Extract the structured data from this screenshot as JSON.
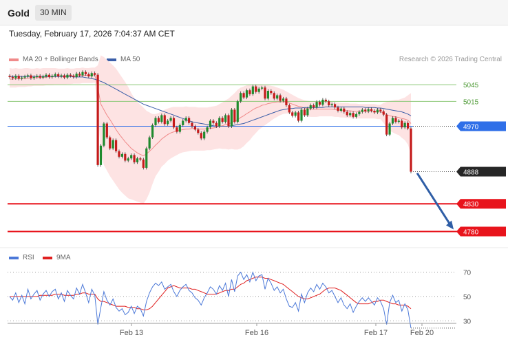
{
  "header": {
    "title": "Gold",
    "timeframe": "30 MIN"
  },
  "datetime": "Tuesday, February 17, 2026 7:04:37 AM CET",
  "legend": [
    {
      "label": "MA 20 + Bollinger Bands",
      "color": "#f08a8a"
    },
    {
      "label": "MA 50",
      "color": "#3b5ea8"
    }
  ],
  "rsi_legend": [
    {
      "label": "RSI",
      "color": "#4b78d8"
    },
    {
      "label": "9MA",
      "color": "#e02020"
    }
  ],
  "copyright": "Research © 2026 Trading Central",
  "colors": {
    "resistance": "#8ec97a",
    "pivot": "#2f6fe8",
    "support": "#e8141c",
    "current": "#262626",
    "bollinger": "#fde3e3",
    "arrow": "#2f5ea6",
    "candle_up": "#1f8a2e",
    "candle_down": "#c41a1a"
  },
  "chart_data": [
    {
      "type": "candlestick",
      "ylim": [
        4757,
        5080
      ],
      "xtick_labels": [
        "Feb 13",
        "Feb 16",
        "Feb 17",
        "Feb 20"
      ],
      "levels": [
        {
          "label": "5045",
          "value": 5045,
          "kind": "resistance"
        },
        {
          "label": "5015",
          "value": 5015,
          "kind": "resistance"
        },
        {
          "label": "4970",
          "value": 4970,
          "kind": "pivot"
        },
        {
          "label": "4888",
          "value": 4888,
          "kind": "current"
        },
        {
          "label": "4830",
          "value": 4830,
          "kind": "support"
        },
        {
          "label": "4780",
          "value": 4780,
          "kind": "support"
        }
      ],
      "close": [
        5059,
        5057,
        5061,
        5056,
        5058,
        5060,
        5062,
        5057,
        5059,
        5061,
        5058,
        5060,
        5063,
        5059,
        5061,
        5064,
        5060,
        5062,
        5058,
        5063,
        5061,
        5059,
        5065,
        5062,
        5068,
        5064,
        5060,
        5066,
        5063,
        4900,
        4935,
        4975,
        4950,
        4930,
        4945,
        4925,
        4915,
        4920,
        4908,
        4912,
        4918,
        4905,
        4912,
        4910,
        4895,
        4930,
        4950,
        4972,
        4985,
        4978,
        4990,
        4974,
        4980,
        4985,
        4968,
        4960,
        4972,
        4980,
        4985,
        4976,
        4970,
        4964,
        4958,
        4948,
        4960,
        4968,
        4980,
        4976,
        4970,
        4985,
        4978,
        4990,
        4970,
        5000,
        4978,
        5015,
        5030,
        5022,
        5035,
        5028,
        5042,
        5032,
        5038,
        5040,
        5020,
        5034,
        5030,
        5020,
        5026,
        5016,
        5020,
        5008,
        4995,
        4989,
        4995,
        4980,
        5000,
        4990,
        5002,
        5008,
        5004,
        5014,
        5009,
        5018,
        5015,
        5008,
        5010,
        5004,
        4998,
        5002,
        4996,
        4990,
        4994,
        4987,
        4992,
        4996,
        5000,
        4997,
        5001,
        4998,
        4995,
        5000,
        4997,
        4991,
        4955,
        4975,
        4985,
        4978,
        4980,
        4968,
        4976,
        4966,
        4888
      ],
      "ma20": [
        5055,
        5055,
        5056,
        5056,
        5056,
        5056,
        5057,
        5057,
        5058,
        5058,
        5058,
        5058,
        5059,
        5059,
        5059,
        5060,
        5060,
        5060,
        5060,
        5061,
        5061,
        5061,
        5061,
        5061,
        5062,
        5062,
        5062,
        5062,
        5063,
        5040,
        5010,
        5000,
        4990,
        4982,
        4973,
        4964,
        4956,
        4949,
        4942,
        4936,
        4930,
        4926,
        4922,
        4919,
        4917,
        4920,
        4925,
        4930,
        4936,
        4941,
        4947,
        4951,
        4955,
        4958,
        4960,
        4962,
        4963,
        4964,
        4965,
        4965,
        4966,
        4966,
        4965,
        4965,
        4965,
        4966,
        4966,
        4967,
        4968,
        4970,
        4971,
        4973,
        4974,
        4977,
        4979,
        4982,
        4986,
        4989,
        4993,
        4996,
        5000,
        5003,
        5005,
        5008,
        5009,
        5011,
        5012,
        5013,
        5014,
        5014,
        5014,
        5014,
        5012,
        5010,
        5008,
        5006,
        5005,
        5003,
        5002,
        5001,
        5001,
        5001,
        5001,
        5001,
        5001,
        5001,
        5001,
        5000,
        5000,
        4999,
        4999,
        4998,
        4998,
        4997,
        4997,
        4997,
        4997,
        4997,
        4997,
        4997,
        4997,
        4996,
        4996,
        4994,
        4991,
        4989,
        4988,
        4987,
        4986,
        4984,
        4983,
        4981,
        4975
      ],
      "ma50": [
        5060,
        5060,
        5060,
        5060,
        5060,
        5060,
        5060,
        5060,
        5060,
        5060,
        5060,
        5060,
        5060,
        5060,
        5060,
        5060,
        5060,
        5060,
        5060,
        5060,
        5060,
        5059,
        5059,
        5059,
        5059,
        5058,
        5057,
        5056,
        5055,
        5053,
        5051,
        5049,
        5046,
        5043,
        5040,
        5037,
        5034,
        5031,
        5028,
        5025,
        5022,
        5019,
        5016,
        5013,
        5010,
        5008,
        5006,
        5004,
        5002,
        5000,
        4998,
        4996,
        4994,
        4992,
        4990,
        4988,
        4986,
        4984,
        4982,
        4980,
        4978,
        4977,
        4976,
        4975,
        4974,
        4973,
        4972,
        4971,
        4970,
        4970,
        4970,
        4970,
        4970,
        4971,
        4972,
        4973,
        4974,
        4975,
        4977,
        4979,
        4981,
        4983,
        4985,
        4987,
        4989,
        4991,
        4993,
        4995,
        4997,
        4999,
        5000,
        5001,
        5002,
        5002,
        5003,
        5003,
        5003,
        5004,
        5004,
        5004,
        5004,
        5004,
        5004,
        5004,
        5005,
        5005,
        5005,
        5005,
        5005,
        5005,
        5005,
        5005,
        5005,
        5005,
        5005,
        5005,
        5005,
        5004,
        5004,
        5004,
        5004,
        5003,
        5003,
        5002,
        5001,
        5000,
        4999,
        4998,
        4997,
        4996,
        4994,
        4992,
        4989
      ],
      "bb_upper": [
        5075,
        5074,
        5075,
        5074,
        5074,
        5075,
        5075,
        5074,
        5074,
        5075,
        5074,
        5075,
        5075,
        5075,
        5075,
        5075,
        5074,
        5074,
        5074,
        5075,
        5074,
        5074,
        5075,
        5075,
        5076,
        5075,
        5075,
        5076,
        5076,
        5080,
        5098,
        5095,
        5090,
        5085,
        5080,
        5074,
        5066,
        5058,
        5050,
        5041,
        5030,
        5021,
        5014,
        5009,
        5004,
        4998,
        4995,
        4992,
        4992,
        4994,
        4997,
        5000,
        5002,
        5004,
        5005,
        5005,
        5005,
        5005,
        5006,
        5005,
        5005,
        5005,
        5004,
        5004,
        5004,
        5004,
        5005,
        5006,
        5007,
        5010,
        5013,
        5017,
        5020,
        5025,
        5030,
        5036,
        5040,
        5042,
        5044,
        5045,
        5046,
        5046,
        5046,
        5046,
        5045,
        5044,
        5043,
        5042,
        5040,
        5038,
        5036,
        5033,
        5030,
        5027,
        5024,
        5021,
        5019,
        5017,
        5016,
        5015,
        5015,
        5015,
        5014,
        5014,
        5014,
        5014,
        5013,
        5013,
        5013,
        5012,
        5012,
        5012,
        5011,
        5011,
        5011,
        5010,
        5010,
        5010,
        5010,
        5010,
        5010,
        5009,
        5009,
        5012,
        5014,
        5016,
        5017,
        5018,
        5018,
        5020,
        5022,
        5026,
        5030
      ],
      "bb_lower": [
        5040,
        5040,
        5040,
        5041,
        5041,
        5041,
        5042,
        5042,
        5043,
        5043,
        5043,
        5043,
        5044,
        5044,
        5044,
        5045,
        5045,
        5045,
        5045,
        5046,
        5046,
        5047,
        5047,
        5047,
        5048,
        5048,
        5048,
        5048,
        5049,
        5000,
        4920,
        4900,
        4890,
        4880,
        4872,
        4864,
        4856,
        4850,
        4845,
        4840,
        4838,
        4836,
        4834,
        4832,
        4830,
        4838,
        4850,
        4866,
        4880,
        4888,
        4897,
        4902,
        4908,
        4912,
        4915,
        4918,
        4921,
        4923,
        4924,
        4925,
        4926,
        4926,
        4926,
        4926,
        4926,
        4927,
        4927,
        4928,
        4929,
        4930,
        4929,
        4929,
        4928,
        4929,
        4928,
        4928,
        4930,
        4934,
        4940,
        4945,
        4952,
        4958,
        4964,
        4968,
        4972,
        4976,
        4980,
        4984,
        4987,
        4990,
        4992,
        4993,
        4993,
        4993,
        4992,
        4991,
        4990,
        4989,
        4988,
        4987,
        4987,
        4987,
        4988,
        4988,
        4988,
        4988,
        4988,
        4987,
        4987,
        4986,
        4986,
        4985,
        4985,
        4984,
        4984,
        4984,
        4984,
        4984,
        4984,
        4984,
        4984,
        4983,
        4983,
        4976,
        4968,
        4962,
        4959,
        4956,
        4954,
        4949,
        4945,
        4937,
        4920
      ]
    },
    {
      "type": "line",
      "ylim": [
        20,
        80
      ],
      "ytick_labels": [
        "70",
        "50",
        "30"
      ],
      "yticks": [
        70,
        50,
        30
      ],
      "series": [
        {
          "name": "RSI",
          "values": [
            50,
            47,
            53,
            45,
            51,
            44,
            56,
            48,
            52,
            55,
            47,
            52,
            55,
            50,
            54,
            56,
            48,
            53,
            46,
            55,
            51,
            48,
            57,
            52,
            60,
            53,
            45,
            56,
            51,
            27,
            41,
            54,
            47,
            43,
            48,
            41,
            38,
            40,
            35,
            37,
            42,
            36,
            42,
            40,
            34,
            46,
            53,
            58,
            61,
            59,
            62,
            56,
            58,
            60,
            54,
            50,
            55,
            58,
            60,
            55,
            53,
            49,
            47,
            43,
            49,
            53,
            58,
            56,
            52,
            59,
            55,
            61,
            50,
            64,
            54,
            67,
            70,
            64,
            68,
            62,
            70,
            63,
            67,
            68,
            56,
            65,
            61,
            55,
            58,
            53,
            56,
            48,
            42,
            41,
            45,
            38,
            52,
            45,
            53,
            57,
            54,
            60,
            56,
            61,
            58,
            53,
            55,
            50,
            45,
            49,
            43,
            40,
            44,
            37,
            42,
            46,
            49,
            46,
            49,
            46,
            43,
            49,
            46,
            40,
            27,
            45,
            51,
            45,
            47,
            38,
            44,
            39,
            24
          ]
        },
        {
          "name": "9MA",
          "values": [
            50,
            50,
            50,
            50,
            50,
            50,
            50,
            50,
            50,
            50,
            51,
            51,
            51,
            51,
            51,
            52,
            52,
            52,
            51,
            51,
            51,
            51,
            52,
            52,
            53,
            53,
            52,
            52,
            52,
            48,
            46,
            46,
            45,
            44,
            43,
            42,
            42,
            42,
            42,
            41,
            41,
            41,
            40,
            40,
            39,
            39,
            40,
            42,
            45,
            48,
            51,
            54,
            57,
            58,
            59,
            58,
            57,
            57,
            57,
            57,
            56,
            56,
            55,
            54,
            53,
            52,
            52,
            52,
            52,
            53,
            54,
            55,
            55,
            56,
            56,
            58,
            60,
            61,
            63,
            64,
            65,
            66,
            66,
            66,
            65,
            65,
            64,
            63,
            62,
            61,
            60,
            58,
            56,
            54,
            52,
            50,
            49,
            48,
            48,
            49,
            50,
            51,
            52,
            54,
            56,
            57,
            57,
            57,
            56,
            55,
            53,
            51,
            49,
            47,
            45,
            44,
            44,
            44,
            44,
            45,
            46,
            46,
            47,
            47,
            46,
            45,
            44,
            44,
            43,
            43,
            43,
            42,
            40
          ]
        }
      ]
    }
  ]
}
